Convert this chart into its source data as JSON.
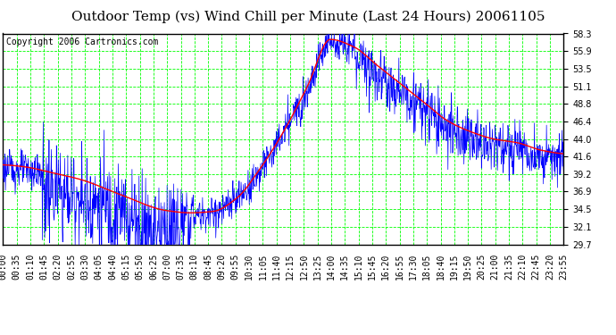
{
  "title": "Outdoor Temp (vs) Wind Chill per Minute (Last 24 Hours) 20061105",
  "copyright": "Copyright 2006 Cartronics.com",
  "background_color": "#ffffff",
  "plot_bg_color": "#ffffff",
  "grid_color": "#00ff00",
  "y_ticks": [
    29.7,
    32.1,
    34.5,
    36.9,
    39.2,
    41.6,
    44.0,
    46.4,
    48.8,
    51.1,
    53.5,
    55.9,
    58.3
  ],
  "x_labels": [
    "00:00",
    "00:35",
    "01:10",
    "01:45",
    "02:20",
    "02:55",
    "03:30",
    "04:05",
    "04:40",
    "05:15",
    "05:50",
    "06:25",
    "07:00",
    "07:35",
    "08:10",
    "08:45",
    "09:20",
    "09:55",
    "10:30",
    "11:05",
    "11:40",
    "12:15",
    "12:50",
    "13:25",
    "14:00",
    "14:35",
    "15:10",
    "15:45",
    "16:20",
    "16:55",
    "17:30",
    "18:05",
    "18:40",
    "19:15",
    "19:50",
    "20:25",
    "21:00",
    "21:35",
    "22:10",
    "22:45",
    "23:20",
    "23:55"
  ],
  "outer_border_color": "#000000",
  "red_line_color": "#ff0000",
  "blue_line_color": "#0000ff",
  "title_fontsize": 11,
  "copyright_fontsize": 7,
  "tick_fontsize": 7,
  "ymin": 29.7,
  "ymax": 58.3,
  "xmin": 0,
  "xmax": 1439,
  "red_key_points_x": [
    0,
    60,
    120,
    200,
    300,
    420,
    480,
    540,
    600,
    660,
    720,
    780,
    840,
    900,
    960,
    1020,
    1080,
    1140,
    1200,
    1260,
    1320,
    1380,
    1439
  ],
  "red_key_points_y": [
    40.5,
    40.2,
    39.5,
    38.5,
    36.5,
    34.3,
    34.0,
    34.2,
    36.0,
    40.0,
    45.0,
    51.0,
    57.5,
    56.5,
    54.0,
    51.5,
    49.0,
    46.5,
    45.0,
    44.0,
    43.5,
    42.5,
    42.0
  ],
  "noise_seed": 123,
  "blue_noise_night": 4.0,
  "blue_noise_day": 1.5,
  "blue_noise_eve": 2.5
}
